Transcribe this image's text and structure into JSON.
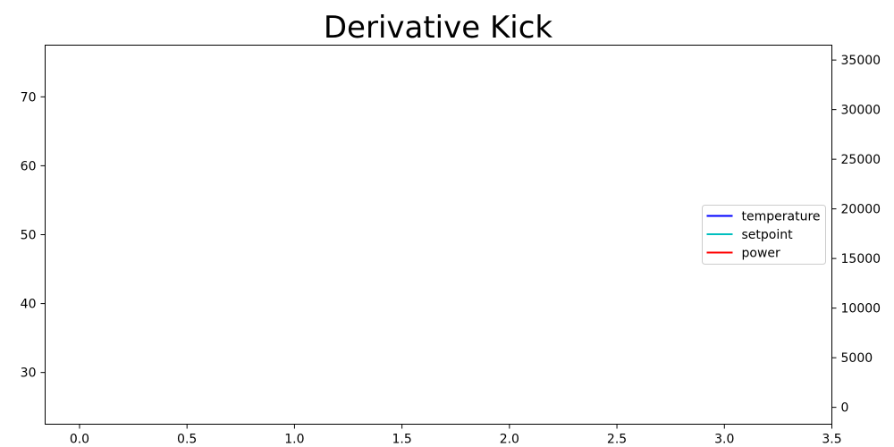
{
  "chart_data": {
    "type": "line",
    "title": "Derivative Kick",
    "xlabel": "",
    "ylabel": "",
    "y2label": "",
    "xlim": [
      -0.16,
      3.5
    ],
    "ylim": [
      22.5,
      77.5
    ],
    "y2lim": [
      -1700,
      36500
    ],
    "x_ticks": [
      "0.0",
      "0.5",
      "1.0",
      "1.5",
      "2.0",
      "2.5",
      "3.0",
      "3.5"
    ],
    "y_ticks": [
      "30",
      "40",
      "50",
      "60",
      "70"
    ],
    "y2_ticks": [
      "0",
      "5000",
      "10000",
      "15000",
      "20000",
      "25000",
      "30000",
      "35000"
    ],
    "grid": false,
    "legend_position": "center-right",
    "series": [
      {
        "name": "temperature",
        "axis": "left",
        "color": "#0000ff",
        "x": [],
        "values": []
      },
      {
        "name": "setpoint",
        "axis": "left",
        "color": "#00bfbf",
        "x": [],
        "values": []
      },
      {
        "name": "power",
        "axis": "right",
        "color": "#ff0000",
        "x": [],
        "values": []
      }
    ]
  }
}
